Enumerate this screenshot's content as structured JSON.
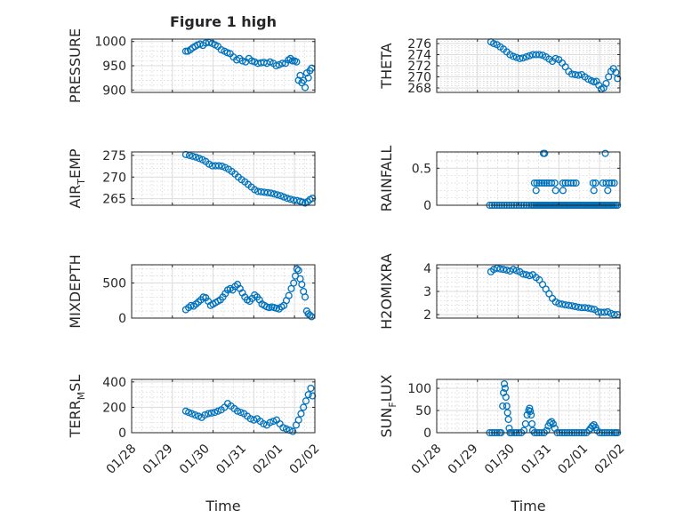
{
  "figure": {
    "title": "Figure 1 high",
    "xlabel": "Time"
  },
  "colors": {
    "marker": "#0072bd",
    "axis": "#262626"
  },
  "chart_data": [
    {
      "type": "scatter",
      "id": "pressure",
      "ylabel": "PRESSURE",
      "ylabel_sub": "",
      "title": "Figure 1 high",
      "ylim": [
        895,
        1005
      ],
      "yticks": [
        900,
        950,
        1000
      ],
      "x": [
        1.33,
        1.38,
        1.44,
        1.5,
        1.56,
        1.62,
        1.68,
        1.75,
        1.82,
        1.9,
        1.98,
        2.05,
        2.12,
        2.2,
        2.28,
        2.35,
        2.42,
        2.5,
        2.58,
        2.65,
        2.72,
        2.8,
        2.88,
        2.95,
        3.02,
        3.1,
        3.18,
        3.25,
        3.32,
        3.4,
        3.48,
        3.55,
        3.62,
        3.7,
        3.78,
        3.85,
        3.9,
        3.95,
        4.0,
        4.05,
        4.1,
        4.14,
        4.18,
        4.22,
        4.26,
        4.3,
        4.34,
        4.38,
        4.42
      ],
      "y": [
        980,
        980,
        983,
        987,
        990,
        993,
        995,
        992,
        997,
        998,
        996,
        993,
        990,
        983,
        980,
        977,
        975,
        968,
        962,
        965,
        960,
        958,
        965,
        960,
        958,
        955,
        956,
        957,
        955,
        958,
        955,
        950,
        952,
        955,
        955,
        962,
        965,
        960,
        960,
        958,
        920,
        930,
        915,
        920,
        905,
        935,
        925,
        940,
        945
      ],
      "xlim": [
        0,
        4.5
      ],
      "xticks": [
        0,
        1,
        2,
        3,
        4
      ]
    },
    {
      "type": "scatter",
      "id": "theta",
      "ylabel": "THETA",
      "ylabel_sub": "",
      "ylim": [
        267.2,
        276.8
      ],
      "yticks": [
        268,
        270,
        272,
        274,
        276
      ],
      "x": [
        1.33,
        1.4,
        1.48,
        1.56,
        1.64,
        1.72,
        1.8,
        1.88,
        1.96,
        2.04,
        2.12,
        2.2,
        2.28,
        2.36,
        2.44,
        2.52,
        2.6,
        2.68,
        2.76,
        2.84,
        2.92,
        3.0,
        3.08,
        3.16,
        3.24,
        3.32,
        3.4,
        3.48,
        3.56,
        3.64,
        3.72,
        3.8,
        3.86,
        3.92,
        3.98,
        4.04,
        4.1,
        4.16,
        4.22,
        4.28,
        4.34,
        4.4,
        4.44
      ],
      "y": [
        276.3,
        276.0,
        275.8,
        275.4,
        275.0,
        274.5,
        274.0,
        273.7,
        273.5,
        273.3,
        273.4,
        273.6,
        273.8,
        274.0,
        274.0,
        274.0,
        273.9,
        273.6,
        273.2,
        272.8,
        273.3,
        273.1,
        272.5,
        271.8,
        271.0,
        270.5,
        270.4,
        270.3,
        270.4,
        270.0,
        269.6,
        269.3,
        269.1,
        269.2,
        268.5,
        267.8,
        268.0,
        268.8,
        270.0,
        271.0,
        271.5,
        270.8,
        269.7
      ],
      "xlim": [
        0,
        4.5
      ],
      "xticks": [
        0,
        1,
        2,
        3,
        4
      ]
    },
    {
      "type": "scatter",
      "id": "air_temp",
      "ylabel": "AIR",
      "ylabel_sub": "T",
      "ylabel_suffix": "EMP",
      "ylim": [
        263.5,
        275.8
      ],
      "yticks": [
        265,
        270,
        275
      ],
      "x": [
        1.33,
        1.42,
        1.5,
        1.58,
        1.66,
        1.74,
        1.82,
        1.9,
        1.98,
        2.06,
        2.14,
        2.22,
        2.3,
        2.38,
        2.46,
        2.54,
        2.62,
        2.7,
        2.78,
        2.86,
        2.94,
        3.02,
        3.1,
        3.18,
        3.26,
        3.34,
        3.42,
        3.5,
        3.58,
        3.66,
        3.74,
        3.82,
        3.9,
        3.98,
        4.06,
        4.14,
        4.2,
        4.26,
        4.32,
        4.38,
        4.44
      ],
      "y": [
        275.2,
        275.0,
        274.8,
        274.6,
        274.3,
        274.0,
        273.6,
        273.0,
        272.6,
        272.6,
        272.6,
        272.5,
        272.2,
        271.8,
        271.3,
        270.7,
        270.0,
        269.4,
        268.9,
        268.3,
        267.7,
        267.1,
        266.7,
        266.6,
        266.5,
        266.4,
        266.3,
        266.1,
        265.9,
        265.7,
        265.4,
        265.1,
        264.9,
        264.7,
        264.6,
        264.4,
        264.2,
        264.0,
        264.3,
        264.8,
        265.1
      ],
      "xlim": [
        0,
        4.5
      ],
      "xticks": [
        0,
        1,
        2,
        3,
        4
      ]
    },
    {
      "type": "scatter",
      "id": "rainfall",
      "ylabel": "RAINFALL",
      "ylabel_sub": "",
      "ylim": [
        0,
        0.72
      ],
      "yticks": [
        0,
        0.5
      ],
      "ytick_labels": [
        "0",
        "0.5"
      ],
      "x": [
        1.3,
        1.36,
        1.42,
        1.48,
        1.54,
        1.6,
        1.66,
        1.72,
        1.78,
        1.84,
        1.9,
        1.96,
        2.02,
        2.08,
        2.14,
        2.2,
        2.26,
        2.32,
        2.36,
        2.4,
        2.44,
        2.48,
        2.52,
        2.56,
        2.6,
        2.62,
        2.64,
        2.68,
        2.72,
        2.76,
        2.8,
        2.84,
        2.88,
        2.92,
        2.96,
        3.0,
        3.04,
        3.08,
        3.12,
        3.16,
        3.2,
        3.24,
        3.28,
        3.32,
        3.36,
        3.4,
        3.44,
        3.48,
        3.52,
        3.56,
        3.6,
        3.64,
        3.68,
        3.72,
        3.76,
        3.8,
        3.84,
        3.88,
        3.92,
        3.96,
        4.0,
        4.04,
        4.08,
        4.12,
        4.16,
        4.2,
        4.24,
        4.28,
        4.32,
        4.36,
        4.4,
        4.44,
        2.4,
        2.46,
        2.52,
        2.58,
        2.64,
        2.7,
        2.76,
        2.82,
        2.9,
        3.1,
        3.16,
        3.22,
        3.3,
        3.36,
        3.42,
        3.84,
        3.9,
        4.08,
        4.16,
        4.24,
        4.3,
        4.36,
        2.62,
        2.65,
        4.14,
        2.44,
        2.92,
        3.1,
        3.86,
        4.2
      ],
      "y": [
        0,
        0,
        0,
        0,
        0,
        0,
        0,
        0,
        0,
        0,
        0,
        0,
        0,
        0,
        0,
        0,
        0,
        0,
        0,
        0,
        0,
        0,
        0,
        0,
        0,
        0,
        0,
        0,
        0,
        0,
        0,
        0,
        0,
        0,
        0,
        0,
        0,
        0,
        0,
        0,
        0,
        0,
        0,
        0,
        0,
        0,
        0,
        0,
        0,
        0,
        0,
        0,
        0,
        0,
        0,
        0,
        0,
        0,
        0,
        0,
        0,
        0,
        0,
        0,
        0,
        0,
        0,
        0,
        0,
        0,
        0,
        0,
        0.3,
        0.3,
        0.3,
        0.3,
        0.3,
        0.3,
        0.3,
        0.3,
        0.3,
        0.3,
        0.3,
        0.3,
        0.3,
        0.3,
        0.3,
        0.3,
        0.3,
        0.3,
        0.3,
        0.3,
        0.3,
        0.3,
        0.7,
        0.7,
        0.7,
        0.2,
        0.2,
        0.2,
        0.2,
        0.2
      ],
      "xlim": [
        0,
        4.5
      ],
      "xticks": [
        0,
        1,
        2,
        3,
        4
      ]
    },
    {
      "type": "scatter",
      "id": "mixdepth",
      "ylabel": "MIXDEPTH",
      "ylabel_sub": "",
      "ylim": [
        0,
        760
      ],
      "yticks": [
        0,
        500
      ],
      "x": [
        1.33,
        1.4,
        1.46,
        1.52,
        1.58,
        1.64,
        1.7,
        1.76,
        1.82,
        1.88,
        1.94,
        2.0,
        2.06,
        2.12,
        2.18,
        2.24,
        2.3,
        2.36,
        2.42,
        2.48,
        2.54,
        2.6,
        2.66,
        2.72,
        2.78,
        2.84,
        2.9,
        2.96,
        3.02,
        3.08,
        3.14,
        3.2,
        3.26,
        3.32,
        3.38,
        3.44,
        3.5,
        3.56,
        3.62,
        3.68,
        3.74,
        3.8,
        3.86,
        3.92,
        3.98,
        4.02,
        4.06,
        4.1,
        4.14,
        4.18,
        4.22,
        4.26,
        4.3,
        4.34,
        4.38,
        4.42
      ],
      "y": [
        120,
        150,
        180,
        170,
        200,
        230,
        260,
        300,
        290,
        240,
        180,
        200,
        220,
        240,
        260,
        300,
        350,
        400,
        420,
        400,
        450,
        480,
        420,
        360,
        300,
        260,
        240,
        280,
        330,
        300,
        260,
        200,
        180,
        160,
        150,
        160,
        150,
        140,
        130,
        160,
        180,
        250,
        320,
        420,
        500,
        600,
        700,
        680,
        560,
        480,
        380,
        300,
        100,
        60,
        40,
        20
      ],
      "xlim": [
        0,
        4.5
      ],
      "xticks": [
        0,
        1,
        2,
        3,
        4
      ]
    },
    {
      "type": "scatter",
      "id": "h2omixra",
      "ylabel": "H2OMIXRA",
      "ylabel_sub": "",
      "ylim": [
        1.85,
        4.15
      ],
      "yticks": [
        2,
        3,
        4
      ],
      "x": [
        1.33,
        1.4,
        1.48,
        1.56,
        1.64,
        1.72,
        1.8,
        1.88,
        1.96,
        2.04,
        2.12,
        2.2,
        2.28,
        2.36,
        2.44,
        2.52,
        2.6,
        2.68,
        2.76,
        2.84,
        2.92,
        3.0,
        3.08,
        3.16,
        3.24,
        3.32,
        3.4,
        3.48,
        3.56,
        3.64,
        3.72,
        3.8,
        3.88,
        3.96,
        4.04,
        4.12,
        4.2,
        4.28,
        4.36,
        4.44
      ],
      "y": [
        3.85,
        3.95,
        4.0,
        3.97,
        3.95,
        3.92,
        3.88,
        3.95,
        3.9,
        3.85,
        3.75,
        3.72,
        3.68,
        3.72,
        3.6,
        3.5,
        3.3,
        3.1,
        2.9,
        2.7,
        2.55,
        2.48,
        2.45,
        2.42,
        2.4,
        2.38,
        2.35,
        2.32,
        2.3,
        2.3,
        2.28,
        2.25,
        2.22,
        2.12,
        2.1,
        2.1,
        2.12,
        2.05,
        2.0,
        2.0
      ],
      "xlim": [
        0,
        4.5
      ],
      "xticks": [
        0,
        1,
        2,
        3,
        4
      ]
    },
    {
      "type": "scatter",
      "id": "terr_msl",
      "ylabel": "TERR",
      "ylabel_sub": "M",
      "ylabel_suffix": "SL",
      "ylim": [
        0,
        420
      ],
      "yticks": [
        0,
        200,
        400
      ],
      "x": [
        1.33,
        1.4,
        1.48,
        1.56,
        1.64,
        1.72,
        1.8,
        1.88,
        1.96,
        2.04,
        2.12,
        2.2,
        2.28,
        2.36,
        2.44,
        2.52,
        2.6,
        2.68,
        2.76,
        2.84,
        2.92,
        3.0,
        3.08,
        3.16,
        3.24,
        3.32,
        3.4,
        3.48,
        3.56,
        3.64,
        3.72,
        3.8,
        3.88,
        3.96,
        4.04,
        4.1,
        4.16,
        4.22,
        4.28,
        4.34,
        4.4,
        4.44
      ],
      "y": [
        170,
        160,
        150,
        140,
        130,
        120,
        140,
        150,
        155,
        160,
        170,
        180,
        200,
        230,
        210,
        190,
        170,
        160,
        150,
        130,
        110,
        100,
        110,
        90,
        70,
        60,
        80,
        90,
        100,
        70,
        40,
        30,
        20,
        10,
        60,
        100,
        150,
        200,
        250,
        300,
        350,
        290
      ],
      "xlim": [
        0,
        4.5
      ],
      "xticks": [
        0,
        1,
        2,
        3,
        4
      ]
    },
    {
      "type": "scatter",
      "id": "sun_flux",
      "ylabel": "SUN",
      "ylabel_sub": "F",
      "ylabel_suffix": "LUX",
      "ylim": [
        0,
        120
      ],
      "yticks": [
        0,
        50,
        100
      ],
      "x": [
        1.3,
        1.36,
        1.42,
        1.48,
        1.54,
        1.58,
        1.62,
        1.64,
        1.66,
        1.68,
        1.7,
        1.72,
        1.74,
        1.76,
        1.78,
        1.8,
        1.84,
        1.9,
        1.96,
        2.02,
        2.08,
        2.14,
        2.18,
        2.22,
        2.26,
        2.28,
        2.3,
        2.32,
        2.34,
        2.36,
        2.4,
        2.46,
        2.52,
        2.58,
        2.64,
        2.7,
        2.74,
        2.78,
        2.82,
        2.86,
        2.9,
        2.96,
        3.02,
        3.08,
        3.14,
        3.2,
        3.26,
        3.32,
        3.38,
        3.44,
        3.5,
        3.56,
        3.62,
        3.68,
        3.74,
        3.78,
        3.82,
        3.86,
        3.9,
        3.94,
        4.0,
        4.06,
        4.12,
        4.18,
        4.24,
        4.3,
        4.36,
        4.4,
        4.44
      ],
      "y": [
        0,
        0,
        0,
        0,
        0,
        0,
        60,
        90,
        110,
        100,
        80,
        60,
        45,
        30,
        10,
        0,
        0,
        0,
        0,
        0,
        0,
        5,
        20,
        40,
        50,
        55,
        48,
        40,
        20,
        5,
        0,
        0,
        0,
        0,
        0,
        5,
        15,
        22,
        25,
        20,
        10,
        0,
        0,
        0,
        0,
        0,
        0,
        0,
        0,
        0,
        0,
        0,
        0,
        0,
        5,
        10,
        15,
        18,
        12,
        5,
        0,
        0,
        0,
        0,
        0,
        0,
        0,
        0,
        0
      ],
      "xlim": [
        0,
        4.5
      ],
      "xticks": [
        0,
        1,
        2,
        3,
        4
      ]
    }
  ],
  "x_tick_labels": [
    "01/28",
    "01/29",
    "01/30",
    "01/31",
    "02/01",
    "02/02"
  ]
}
